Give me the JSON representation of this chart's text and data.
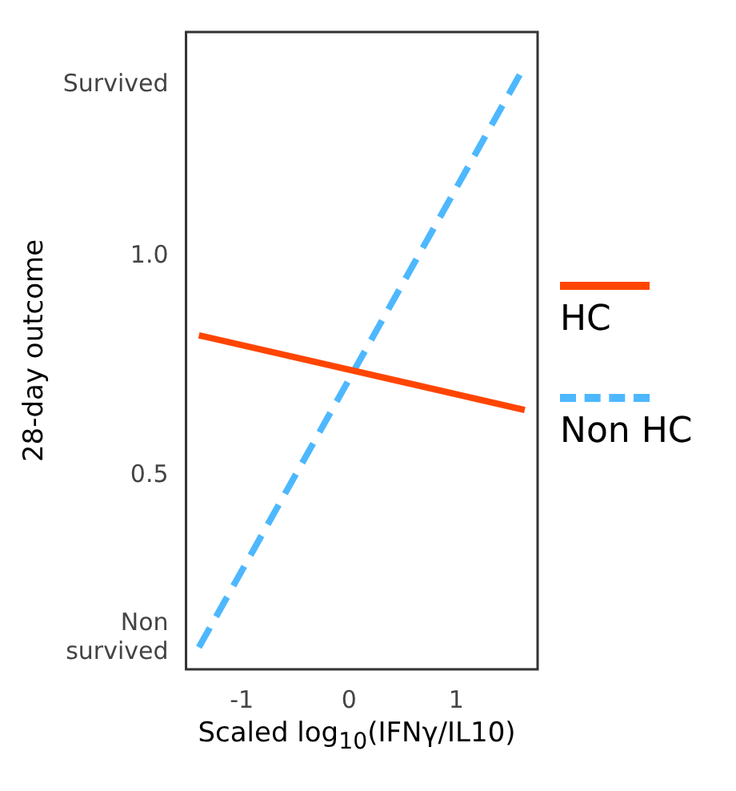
{
  "chart_data": {
    "type": "line",
    "xlabel": "Scaled log$_{10}$(IFNγ/IL10)",
    "ylabel": "28-day outcome",
    "series": [
      {
        "name": "HC",
        "color": "#ff4500",
        "x": [
          -1.4,
          1.64
        ],
        "values": [
          0.82,
          0.65
        ],
        "line_style": "solid"
      },
      {
        "name": "Non HC",
        "color": "#4db8ff",
        "x": [
          -1.4,
          1.61
        ],
        "values": [
          0.11,
          1.42
        ],
        "line_style": "dashed"
      }
    ],
    "xlim": [
      -1.52,
      1.76
    ],
    "xticks": [
      -1,
      0,
      1
    ],
    "ylim": [
      0.06,
      1.51
    ],
    "yticks": [
      {
        "value": 0.13,
        "label": "Non survived"
      },
      {
        "value": 0.5,
        "label": "0.5"
      },
      {
        "value": 1,
        "label": "1.0"
      },
      {
        "value": 1.39,
        "label": "Survived"
      }
    ],
    "grid": false,
    "legend": "right",
    "marker": "none"
  }
}
